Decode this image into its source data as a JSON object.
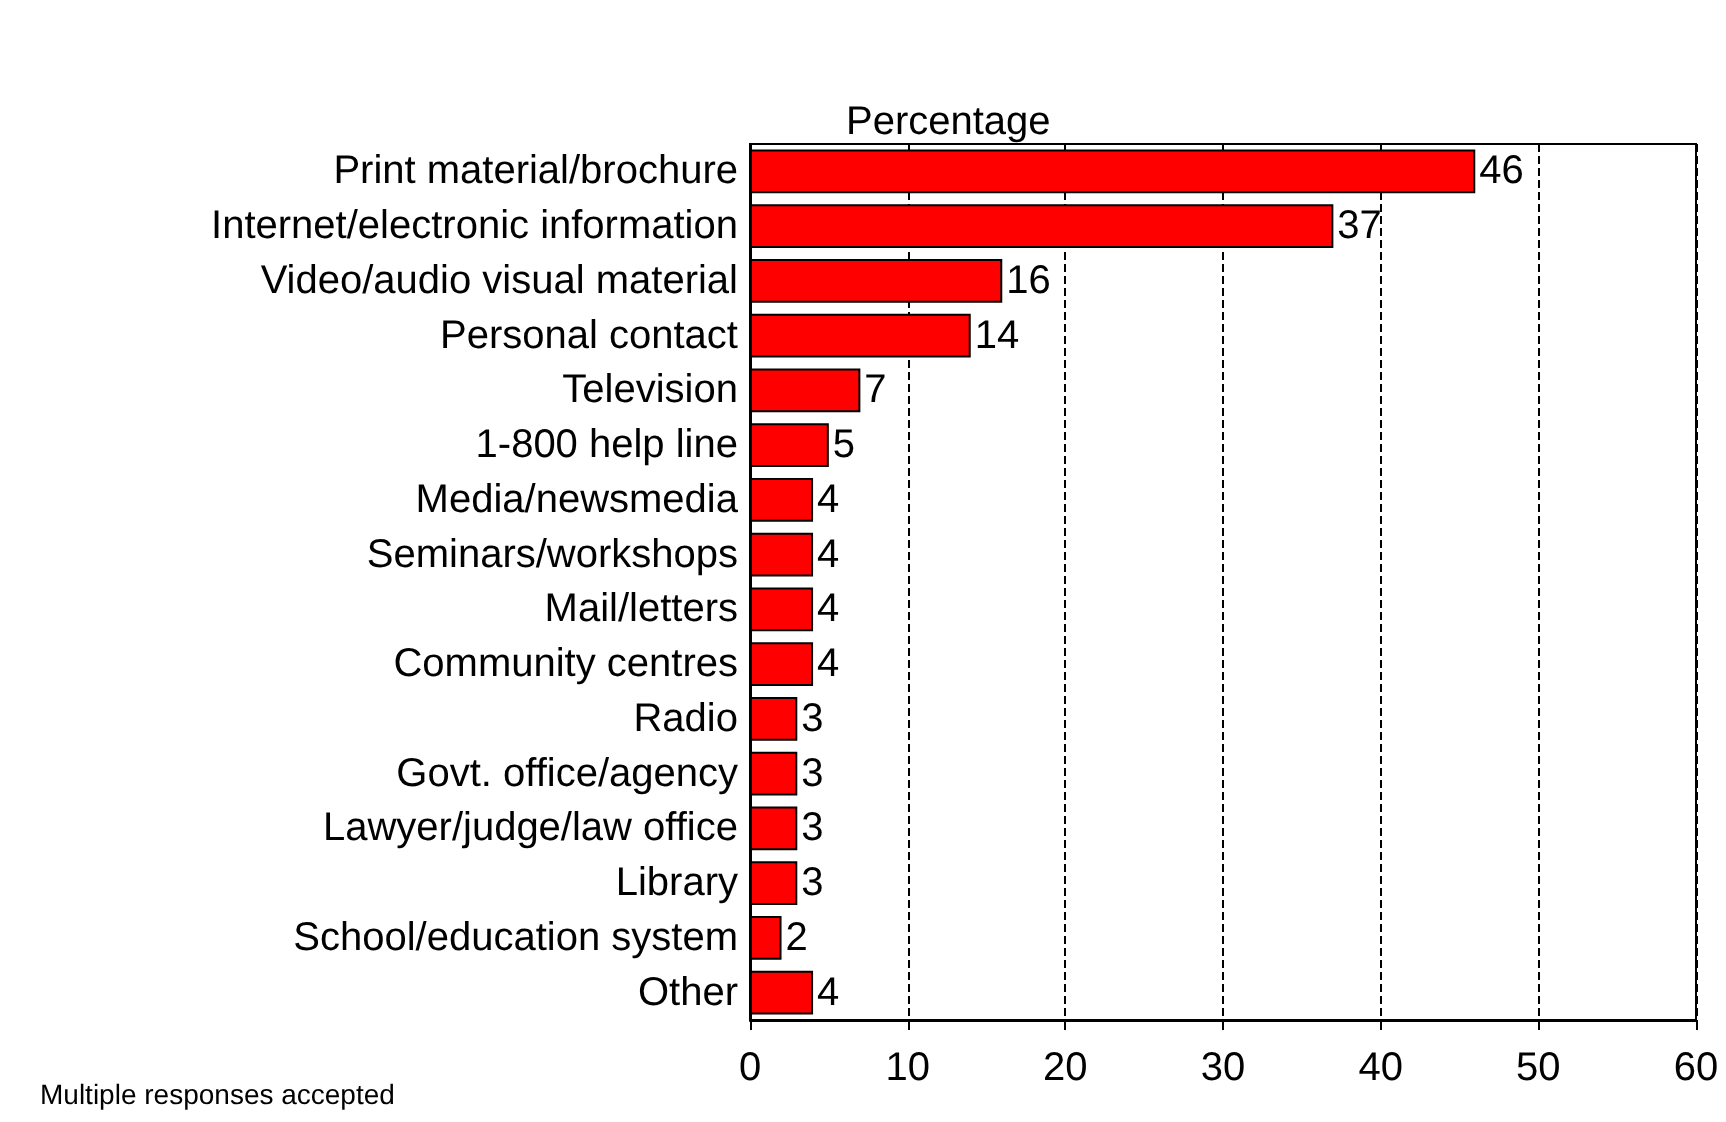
{
  "chart_data": {
    "type": "bar",
    "orientation": "horizontal",
    "title": "Percentage",
    "categories": [
      "Print material/brochure",
      "Internet/electronic information",
      "Video/audio visual material",
      "Personal contact",
      "Television",
      "1-800 help line",
      "Media/newsmedia",
      "Seminars/workshops",
      "Mail/letters",
      "Community centres",
      "Radio",
      "Govt. office/agency",
      "Lawyer/judge/law office",
      "Library",
      "School/education system",
      "Other"
    ],
    "values": [
      46,
      37,
      16,
      14,
      7,
      5,
      4,
      4,
      4,
      4,
      3,
      3,
      3,
      3,
      2,
      4
    ],
    "color": "#ff0000",
    "xlim": [
      0,
      60
    ],
    "xticks": [
      0,
      10,
      20,
      30,
      40,
      50,
      60
    ],
    "grid": "x",
    "data_labels": true,
    "annotations": [
      "Multiple responses accepted"
    ]
  }
}
